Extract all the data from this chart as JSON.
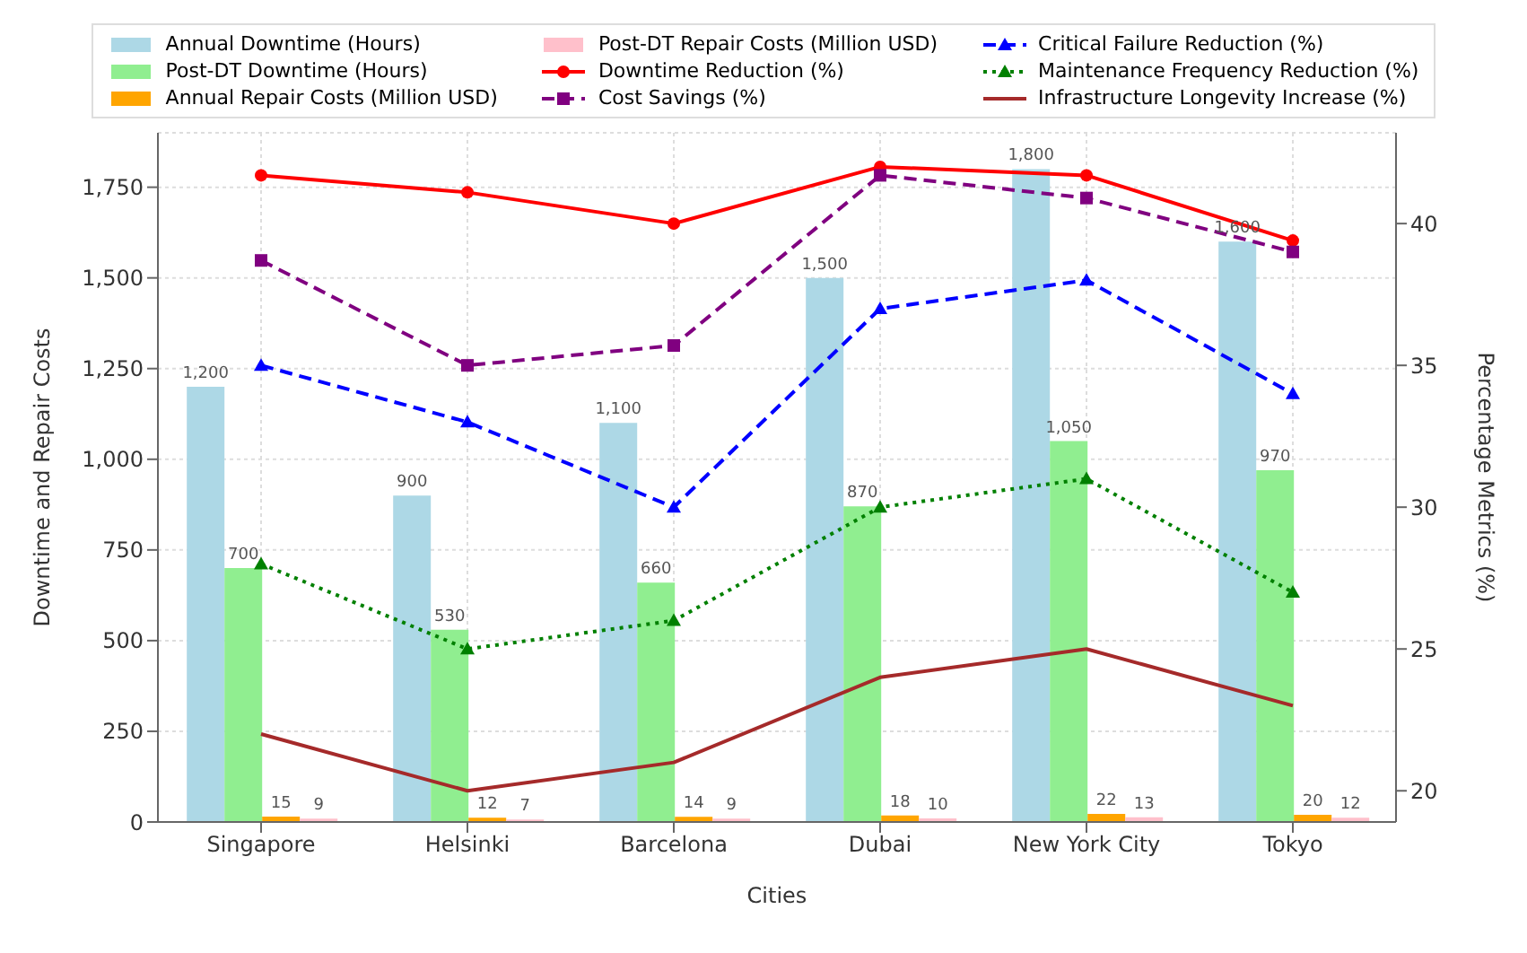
{
  "chart_data": {
    "type": "bar",
    "xlabel": "Cities",
    "ylabel": "Downtime and Repair Costs",
    "y2label": "Percentage Metrics (%)",
    "categories": [
      "Singapore",
      "Helsinki",
      "Barcelona",
      "Dubai",
      "New York City",
      "Tokyo"
    ],
    "series": [
      {
        "name": "Annual Downtime (Hours)",
        "color": "#add8e6",
        "values": [
          1200,
          900,
          1100,
          1500,
          1800,
          1600
        ],
        "value_labels": [
          "1,200",
          "900",
          "1,100",
          "1,500",
          "1,800",
          "1,600"
        ]
      },
      {
        "name": "Post-DT Downtime (Hours)",
        "color": "#90ee90",
        "values": [
          700,
          530,
          660,
          870,
          1050,
          970
        ],
        "value_labels": [
          "700",
          "530",
          "660",
          "870",
          "1,050",
          "970"
        ]
      },
      {
        "name": "Annual Repair Costs (Million USD)",
        "color": "#ffa500",
        "values": [
          15,
          12,
          14,
          18,
          22,
          20
        ],
        "value_labels": [
          "15",
          "12",
          "14",
          "18",
          "22",
          "20"
        ]
      },
      {
        "name": "Post-DT Repair Costs (Million USD)",
        "color": "#ffc0cb",
        "values": [
          9,
          7,
          9,
          10,
          13,
          12
        ],
        "value_labels": [
          "9",
          "7",
          "9",
          "10",
          "13",
          "12"
        ]
      },
      {
        "name": "Downtime Reduction (%)",
        "type": "line",
        "axis": "y2",
        "color": "#ff0000",
        "marker": "circle",
        "line_style": "solid",
        "values": [
          41.7,
          41.1,
          40,
          42,
          41.7,
          39.4
        ]
      },
      {
        "name": "Cost Savings (%)",
        "type": "line",
        "axis": "y2",
        "color": "#800080",
        "marker": "square",
        "line_style": "dashed",
        "values": [
          38.7,
          35,
          35.7,
          41.7,
          40.9,
          39
        ]
      },
      {
        "name": "Critical Failure Reduction (%)",
        "type": "line",
        "axis": "y2",
        "color": "#0000ff",
        "marker": "triangle",
        "line_style": "dashed",
        "values": [
          35,
          33,
          30,
          37,
          38,
          34
        ]
      },
      {
        "name": "Maintenance Frequency Reduction (%)",
        "type": "line",
        "axis": "y2",
        "color": "#008000",
        "marker": "triangle",
        "line_style": "dotted",
        "values": [
          28,
          25,
          26,
          30,
          31,
          27
        ]
      },
      {
        "name": "Infrastructure Longevity Increase (%)",
        "type": "line",
        "axis": "y2",
        "color": "#a52a2a",
        "marker": "none",
        "line_style": "solid",
        "values": [
          22,
          20,
          21,
          24,
          25,
          23
        ]
      }
    ],
    "ylim": [
      0,
      1900
    ],
    "yticks": [
      0,
      250,
      500,
      750,
      {
        "value": 1000,
        "label": "1,000"
      },
      {
        "value": 1250,
        "label": "1,250"
      },
      {
        "value": 1500,
        "label": "1,500"
      },
      {
        "value": 1750,
        "label": "1,750"
      }
    ],
    "y2lim": [
      18.9,
      43.2
    ],
    "y2ticks": [
      20,
      25,
      30,
      35,
      40
    ],
    "grid": true,
    "legend": "top"
  }
}
